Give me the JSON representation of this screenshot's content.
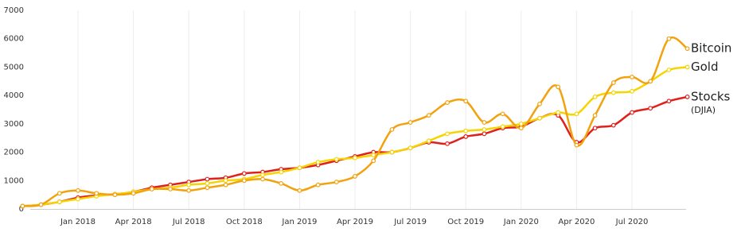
{
  "chart_data": {
    "type": "line",
    "categories": [
      null,
      null,
      null,
      "Jan 2018",
      null,
      null,
      "Apr 2018",
      null,
      null,
      "Jul 2018",
      null,
      null,
      "Oct 2018",
      null,
      null,
      "Jan 2019",
      null,
      null,
      "Apr 2019",
      null,
      null,
      "Jul 2019",
      null,
      null,
      "Oct 2019",
      null,
      null,
      "Jan 2020",
      null,
      null,
      "Apr 2020",
      null,
      null,
      "Jul 2020",
      null,
      null,
      null
    ],
    "series": [
      {
        "name": "Stocks",
        "color": "#e0201b",
        "values": [
          100,
          150,
          250,
          400,
          480,
          520,
          600,
          750,
          850,
          950,
          1050,
          1100,
          1250,
          1300,
          1400,
          1450,
          1550,
          1700,
          1850,
          2000,
          2000,
          2150,
          2350,
          2300,
          2550,
          2650,
          2850,
          2900,
          3200,
          3300,
          2350,
          2850,
          2950,
          3400,
          3550,
          3800,
          3950
        ]
      },
      {
        "name": "Gold",
        "color": "#f5d400",
        "values": [
          100,
          150,
          250,
          350,
          450,
          520,
          600,
          700,
          750,
          850,
          900,
          1000,
          1050,
          1200,
          1300,
          1450,
          1650,
          1750,
          1800,
          1900,
          2000,
          2150,
          2400,
          2650,
          2750,
          2800,
          2900,
          3000,
          3200,
          3400,
          3350,
          3950,
          4100,
          4150,
          4500,
          4900,
          5000
        ]
      },
      {
        "name": "Bitcoin",
        "color": "#f2a20d",
        "values": [
          100,
          150,
          550,
          650,
          550,
          500,
          550,
          700,
          700,
          650,
          750,
          850,
          1000,
          1050,
          900,
          650,
          850,
          950,
          1150,
          1700,
          2800,
          3050,
          3300,
          3750,
          3800,
          3050,
          3350,
          2850,
          3700,
          4300,
          2250,
          3300,
          4450,
          4650,
          4500,
          6000,
          5650
        ]
      }
    ],
    "annotation": "(DJIA)",
    "ylim": [
      0,
      7000
    ],
    "yticks": [
      0,
      1000,
      2000,
      3000,
      4000,
      5000,
      6000,
      7000
    ],
    "grid": true
  }
}
